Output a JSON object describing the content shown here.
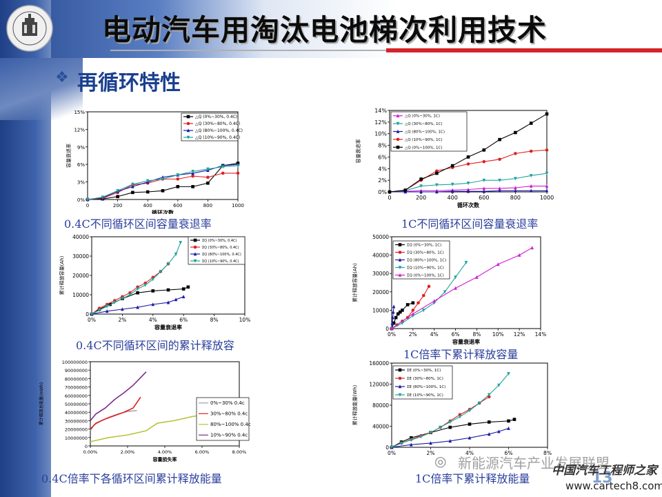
{
  "slide": {
    "title": "电动汽车用淘汰电池梯次利用技术",
    "section": "再循环特性",
    "section_bullet": "❖",
    "page_number": "13",
    "watermark": "新能源汽车产业发展联盟",
    "watermark2": "中国汽车工程师之家",
    "watermark_url": "www.cartech8.com"
  },
  "captions": [
    "0.4C不同循环区间容量衰退率",
    "1C不同循环区间容量衰退率",
    "0.4C不同循环区间的累计释放容",
    "1C倍率下累计释放容量",
    "0.4C倍率下各循环区间累计释放能量",
    "1C倍率下累计释放能量"
  ],
  "colors": {
    "black": "#000000",
    "red": "#e02020",
    "blue": "#1a1aa8",
    "teal": "#1ea39a",
    "magenta": "#d21ed2",
    "gray": "#a0a0a0",
    "olive": "#b8c33a",
    "pink": "#e04aa8",
    "purple": "#7a2c8c"
  },
  "chart_data": [
    {
      "id": "c1",
      "type": "line",
      "ylabel": "容量衰退率",
      "xlabel": "循环次数",
      "xlim": [
        0,
        1000
      ],
      "ylim": [
        0,
        15
      ],
      "xticks": [
        "0",
        "200",
        "400",
        "600",
        "800",
        "1000"
      ],
      "yticks": [
        "0%",
        "3%",
        "6%",
        "9%",
        "12%",
        "15%"
      ],
      "legend": [
        "△Q (0%~30%, 0.4C)",
        "△Q (30%~80%, 0.4C)",
        "△Q (80%~100%, 0.4C)",
        "△Q (10%~90%, 0.4C)"
      ],
      "series": [
        {
          "name": "△Q (0%~30%, 0.4C)",
          "color": "black",
          "marker": "square",
          "x": [
            0,
            100,
            200,
            300,
            400,
            500,
            600,
            700,
            800,
            900,
            1000
          ],
          "y": [
            0,
            0.1,
            0.5,
            1.2,
            1.3,
            1.5,
            2.2,
            2.2,
            2.8,
            5.8,
            6.2
          ]
        },
        {
          "name": "△Q (30%~80%, 0.4C)",
          "color": "red",
          "marker": "circle",
          "x": [
            0,
            100,
            200,
            300,
            400,
            500,
            600,
            700,
            800,
            900,
            1000
          ],
          "y": [
            0,
            0.2,
            1.2,
            2.5,
            2.8,
            3.5,
            3.5,
            4.0,
            3.8,
            4.5,
            4.5
          ]
        },
        {
          "name": "△Q (80%~100%, 0.4C)",
          "color": "blue",
          "marker": "triangle",
          "x": [
            0,
            100,
            200,
            300,
            400,
            500,
            600,
            700,
            800,
            900,
            1000
          ],
          "y": [
            0,
            0.3,
            1.4,
            2.2,
            3.0,
            3.8,
            4.2,
            4.5,
            5.0,
            5.8,
            6.0
          ]
        },
        {
          "name": "△Q (10%~90%, 0.4C)",
          "color": "teal",
          "marker": "tri-down",
          "x": [
            0,
            100,
            200,
            300,
            400,
            500,
            600,
            700,
            800,
            900,
            1000
          ],
          "y": [
            0,
            0.4,
            1.5,
            2.6,
            3.2,
            3.5,
            4.2,
            4.8,
            5.2,
            5.6,
            5.8
          ]
        }
      ]
    },
    {
      "id": "c2",
      "type": "line",
      "ylabel": "容量衰退率",
      "xlabel": "循环次数",
      "xlim": [
        0,
        1000
      ],
      "ylim": [
        0,
        14
      ],
      "xticks": [
        "0",
        "200",
        "400",
        "600",
        "800",
        "1000"
      ],
      "yticks": [
        "0%",
        "2%",
        "4%",
        "6%",
        "8%",
        "10%",
        "12%",
        "14%"
      ],
      "legend": [
        "△Q (0%~30%, 1C)",
        "△Q (30%~80%, 1C)",
        "△Q (80%~100%, 1C)",
        "△Q (10%~90%, 1C)",
        "△Q (0%~100%, 1C)"
      ],
      "series": [
        {
          "name": "△Q (0%~30%, 1C)",
          "color": "magenta",
          "marker": "triangle",
          "x": [
            0,
            100,
            200,
            300,
            400,
            500,
            600,
            700,
            800,
            900,
            1000
          ],
          "y": [
            0,
            0.1,
            0.2,
            0.2,
            0.3,
            0.4,
            0.6,
            0.6,
            0.7,
            1.0,
            1.0
          ]
        },
        {
          "name": "△Q (30%~80%, 1C)",
          "color": "teal",
          "marker": "tri-down",
          "x": [
            0,
            100,
            200,
            300,
            400,
            500,
            600,
            700,
            800,
            900,
            1000
          ],
          "y": [
            0,
            0.2,
            1.0,
            1.2,
            1.3,
            1.5,
            2.0,
            2.0,
            2.3,
            2.8,
            3.2
          ]
        },
        {
          "name": "△Q (80%~100%, 1C)",
          "color": "blue",
          "marker": "triangle",
          "x": [
            0,
            100,
            200,
            300,
            400,
            500,
            600,
            700,
            800,
            900,
            1000
          ],
          "y": [
            0,
            0,
            0,
            0,
            0.1,
            0.1,
            0.1,
            0.2,
            0.2,
            0.2,
            0.2
          ]
        },
        {
          "name": "△Q (10%~90%, 1C)",
          "color": "red",
          "marker": "circle",
          "x": [
            0,
            100,
            200,
            300,
            400,
            500,
            600,
            700,
            800,
            900,
            1000
          ],
          "y": [
            0,
            0.3,
            2.0,
            3.6,
            4.2,
            4.8,
            5.2,
            5.6,
            6.6,
            7.0,
            7.2
          ]
        },
        {
          "name": "△Q (0%~100%, 1C)",
          "color": "black",
          "marker": "square",
          "x": [
            0,
            100,
            200,
            300,
            400,
            500,
            600,
            700,
            800,
            900,
            1000
          ],
          "y": [
            0,
            0.3,
            2.2,
            3.2,
            4.5,
            6.0,
            7.2,
            9.0,
            10.2,
            11.8,
            13.4
          ]
        }
      ]
    },
    {
      "id": "c3",
      "type": "line",
      "ylabel": "累计释放容量(Ah)",
      "xlabel": "容量衰退率",
      "xlim": [
        0,
        10
      ],
      "ylim": [
        0,
        40000
      ],
      "xticks": [
        "0%",
        "2%",
        "4%",
        "6%",
        "8%",
        "10%"
      ],
      "yticks": [
        "0",
        "10000",
        "20000",
        "30000",
        "40000"
      ],
      "legend": [
        "ΣQ (0%~30%, 0.4C)",
        "ΣQ (30%~80%, 0.4C)",
        "ΣQ (80%~100%, 0.4C)",
        "ΣQ (10%~90%, 0.4C)"
      ],
      "series": [
        {
          "name": "ΣQ (0%~30%, 0.4C)",
          "color": "black",
          "marker": "square",
          "x": [
            0,
            0.5,
            1.2,
            2,
            3,
            4,
            5,
            6,
            6.3
          ],
          "y": [
            0,
            2500,
            5000,
            8000,
            11000,
            12000,
            12500,
            13000,
            14000
          ]
        },
        {
          "name": "ΣQ (30%~80%, 0.4C)",
          "color": "red",
          "marker": "circle",
          "x": [
            0,
            0.5,
            1,
            1.5,
            2,
            2.5,
            3,
            3.5,
            4,
            4.5,
            5
          ],
          "y": [
            0,
            3000,
            5000,
            7000,
            9000,
            11000,
            14000,
            16000,
            19000,
            22000,
            26000
          ]
        },
        {
          "name": "ΣQ (80%~100%, 0.4C)",
          "color": "blue",
          "marker": "triangle",
          "x": [
            0,
            1,
            2,
            3,
            4,
            5,
            5.5,
            6
          ],
          "y": [
            0,
            1500,
            2500,
            3500,
            5000,
            6000,
            7500,
            9000
          ]
        },
        {
          "name": "ΣQ (10%~90%, 0.4C)",
          "color": "teal",
          "marker": "tri-down",
          "x": [
            0,
            0.5,
            1,
            1.5,
            2,
            2.5,
            3,
            3.5,
            4,
            4.5,
            5,
            5.5,
            5.8
          ],
          "y": [
            0,
            2000,
            4000,
            6000,
            8000,
            10000,
            13000,
            15000,
            18000,
            22000,
            26000,
            31000,
            37000
          ]
        }
      ]
    },
    {
      "id": "c4",
      "type": "line",
      "ylabel": "累计释放容量(Ah)",
      "xlabel": "容量衰退率",
      "xlim": [
        0,
        14
      ],
      "ylim": [
        0,
        50000
      ],
      "xticks": [
        "0%",
        "2%",
        "4%",
        "6%",
        "8%",
        "10%",
        "12%",
        "14%"
      ],
      "yticks": [
        "0",
        "10000",
        "20000",
        "30000",
        "40000",
        "50000"
      ],
      "legend": [
        "ΣQ (0%~30%, 1C)",
        "ΣQ (30%~80%, 1C)",
        "ΣQ (80%~100%, 1C)",
        "ΣQ (10%~90%, 1C)",
        "ΣQ (0%~100%, 1C)"
      ],
      "series": [
        {
          "name": "ΣQ (0%~30%, 1C)",
          "color": "black",
          "marker": "square",
          "x": [
            0,
            0.2,
            0.4,
            0.6,
            0.8,
            1,
            1.5,
            2
          ],
          "y": [
            0,
            3000,
            6000,
            8000,
            9000,
            10000,
            13000,
            14000
          ]
        },
        {
          "name": "ΣQ (30%~80%, 1C)",
          "color": "red",
          "marker": "circle",
          "x": [
            0,
            0.5,
            1,
            1.5,
            2,
            2.5,
            3,
            3.5
          ],
          "y": [
            0,
            2000,
            4000,
            6000,
            10000,
            14000,
            18000,
            23000
          ]
        },
        {
          "name": "ΣQ (80%~100%, 1C)",
          "color": "blue",
          "marker": "triangle",
          "x": [
            0,
            0.05,
            0.1,
            0.15,
            0.2
          ],
          "y": [
            0,
            3000,
            6000,
            9000,
            12000
          ]
        },
        {
          "name": "ΣQ (10%~90%, 1C)",
          "color": "teal",
          "marker": "tri-down",
          "x": [
            0,
            1,
            2,
            3,
            4,
            5,
            6,
            7
          ],
          "y": [
            0,
            3000,
            7000,
            10000,
            14000,
            20000,
            28000,
            36000
          ]
        },
        {
          "name": "ΣQ (0%~100%, 1C)",
          "color": "magenta",
          "marker": "triangle",
          "x": [
            0,
            2,
            4,
            6,
            8,
            10,
            12,
            13.2
          ],
          "y": [
            0,
            8000,
            15000,
            22000,
            28000,
            35000,
            40000,
            44000
          ]
        }
      ]
    },
    {
      "id": "c5",
      "type": "line",
      "ylabel": "累计释放总能量(mWh)",
      "xlabel": "容量损失率",
      "xlim": [
        0,
        8
      ],
      "ylim": [
        0,
        100000000
      ],
      "xticks": [
        "0.00%",
        "2.00%",
        "4.00%",
        "6.00%",
        "8.00%"
      ],
      "yticks": [
        "0",
        "10000000",
        "20000000",
        "30000000",
        "40000000",
        "50000000",
        "60000000",
        "70000000",
        "80000000",
        "90000000",
        "100000000"
      ],
      "legend": [
        "0%~30% 0.4c",
        "30%~80% 0.4c",
        "80%~100% 0.4c",
        "10%~90% 0.4c"
      ],
      "series": [
        {
          "name": "0%~30% 0.4c",
          "color": "gray",
          "marker": "none",
          "x": [
            0,
            0.2,
            0.6,
            1.0,
            1.5,
            2.0,
            2.5
          ],
          "y": [
            18000000,
            25000000,
            30000000,
            34000000,
            38000000,
            41000000,
            42000000
          ]
        },
        {
          "name": "30%~80% 0.4c",
          "color": "red",
          "marker": "none",
          "x": [
            0,
            0.3,
            0.8,
            1.3,
            1.8,
            2.3,
            2.7
          ],
          "y": [
            20000000,
            27000000,
            32000000,
            36000000,
            40000000,
            45000000,
            58000000
          ]
        },
        {
          "name": "80%~100% 0.4c",
          "color": "olive",
          "marker": "none",
          "x": [
            0,
            1,
            2,
            3,
            3.6,
            4.5,
            5.5,
            6.1
          ],
          "y": [
            5000000,
            10000000,
            13000000,
            18000000,
            27000000,
            30000000,
            35000000,
            37000000
          ]
        },
        {
          "name": "10%~90% 0.4c",
          "color": "purple",
          "marker": "none",
          "x": [
            0,
            0.3,
            0.8,
            1.3,
            1.8,
            2.3,
            3.0
          ],
          "y": [
            30000000,
            38000000,
            45000000,
            55000000,
            63000000,
            72000000,
            88000000
          ]
        }
      ]
    },
    {
      "id": "c6",
      "type": "line",
      "ylabel": "累计释放能量(Wh)",
      "xlabel": "",
      "xlim": [
        0,
        8
      ],
      "ylim": [
        0,
        160000
      ],
      "xticks": [
        "0%",
        "2%",
        "4%",
        "6%",
        "8%"
      ],
      "yticks": [
        "0",
        "40000",
        "80000",
        "120000",
        "160000"
      ],
      "legend": [
        "ΣE (0%~30%, 1C)",
        "ΣE (30%~80%, 1C)",
        "ΣE (80%~100%, 1C)",
        "ΣE (10%~90%, 1C)"
      ],
      "series": [
        {
          "name": "ΣE (0%~30%, 1C)",
          "color": "black",
          "marker": "square",
          "x": [
            0,
            0.5,
            1,
            2,
            3,
            4,
            5,
            6,
            6.3
          ],
          "y": [
            0,
            10000,
            18000,
            28000,
            38000,
            44000,
            48000,
            50000,
            53000
          ]
        },
        {
          "name": "ΣE (30%~80%, 1C)",
          "color": "red",
          "marker": "circle",
          "x": [
            0,
            0.5,
            1,
            1.5,
            2,
            2.5,
            3,
            3.5,
            4,
            4.5,
            5
          ],
          "y": [
            0,
            8000,
            15000,
            22000,
            28000,
            38000,
            50000,
            62000,
            72000,
            84000,
            96000
          ]
        },
        {
          "name": "ΣE (80%~100%, 1C)",
          "color": "blue",
          "marker": "triangle",
          "x": [
            0,
            1,
            2,
            3,
            4,
            5,
            5.5,
            6
          ],
          "y": [
            0,
            5000,
            8000,
            12000,
            18000,
            25000,
            30000,
            36000
          ]
        },
        {
          "name": "ΣE (10%~90%, 1C)",
          "color": "teal",
          "marker": "tri-down",
          "x": [
            0,
            0.5,
            1,
            1.5,
            2,
            2.5,
            3,
            3.5,
            4,
            4.5,
            5,
            5.5,
            6
          ],
          "y": [
            0,
            8000,
            14000,
            20000,
            28000,
            38000,
            48000,
            58000,
            70000,
            84000,
            100000,
            118000,
            140000
          ]
        }
      ]
    }
  ]
}
